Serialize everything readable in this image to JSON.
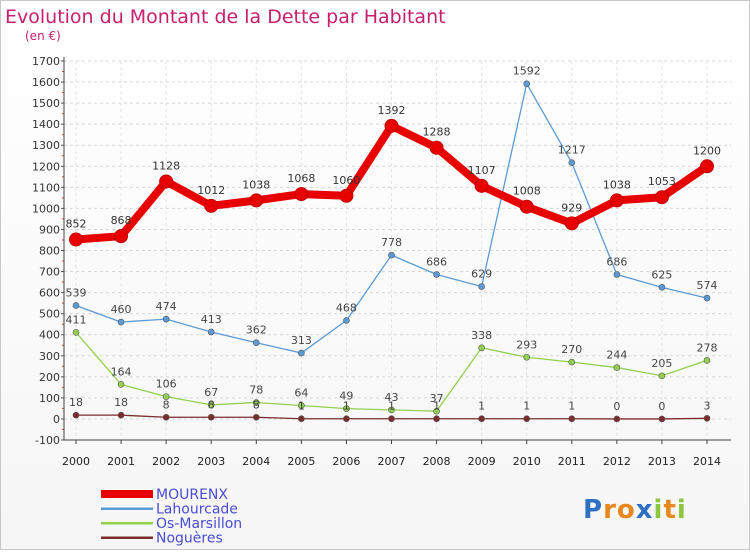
{
  "chart_data": {
    "type": "line",
    "title": "Evolution du Montant de la Dette par Habitant",
    "subtitle": "(en €)",
    "xlabel": "",
    "ylabel": "",
    "ylim": [
      -100,
      1700
    ],
    "yticks": [
      -100,
      0,
      100,
      200,
      300,
      400,
      500,
      600,
      700,
      800,
      900,
      1000,
      1100,
      1200,
      1300,
      1400,
      1500,
      1600,
      1700
    ],
    "categories": [
      "2000",
      "2001",
      "2002",
      "2003",
      "2004",
      "2005",
      "2006",
      "2007",
      "2008",
      "2009",
      "2010",
      "2011",
      "2012",
      "2013",
      "2014"
    ],
    "grid": true,
    "legend_position": "bottom-left",
    "series": [
      {
        "name": "MOURENX",
        "color": "#e80000",
        "values": [
          852,
          868,
          1128,
          1012,
          1038,
          1068,
          1060,
          1392,
          1288,
          1107,
          1008,
          929,
          1038,
          1053,
          1200
        ]
      },
      {
        "name": "Lahourcade",
        "color": "#5b9bd5",
        "values": [
          539,
          460,
          474,
          413,
          362,
          313,
          468,
          778,
          686,
          629,
          1592,
          1217,
          686,
          625,
          574
        ]
      },
      {
        "name": "Os-Marsillon",
        "color": "#92d050",
        "values": [
          411,
          164,
          106,
          67,
          78,
          64,
          49,
          43,
          37,
          338,
          293,
          270,
          244,
          205,
          278
        ]
      },
      {
        "name": "Noguères",
        "color": "#7b2c2c",
        "values": [
          18,
          18,
          8,
          8,
          8,
          1,
          1,
          1,
          1,
          1,
          1,
          1,
          0,
          0,
          3
        ]
      }
    ]
  },
  "brand": {
    "logo_text": "Proxiti"
  }
}
